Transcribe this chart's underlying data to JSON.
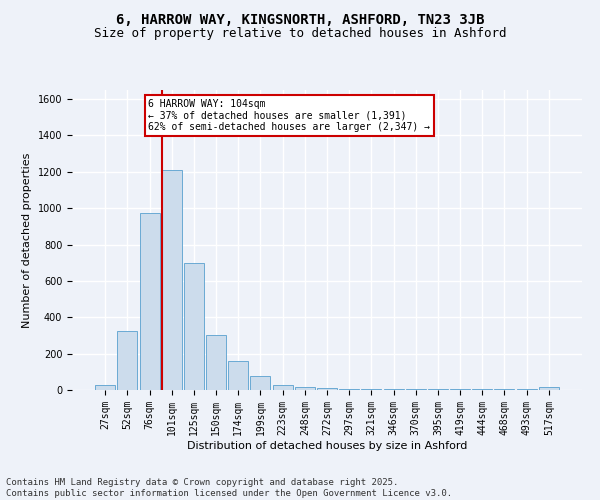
{
  "title1": "6, HARROW WAY, KINGSNORTH, ASHFORD, TN23 3JB",
  "title2": "Size of property relative to detached houses in Ashford",
  "xlabel": "Distribution of detached houses by size in Ashford",
  "ylabel": "Number of detached properties",
  "categories": [
    "27sqm",
    "52sqm",
    "76sqm",
    "101sqm",
    "125sqm",
    "150sqm",
    "174sqm",
    "199sqm",
    "223sqm",
    "248sqm",
    "272sqm",
    "297sqm",
    "321sqm",
    "346sqm",
    "370sqm",
    "395sqm",
    "419sqm",
    "444sqm",
    "468sqm",
    "493sqm",
    "517sqm"
  ],
  "values": [
    25,
    325,
    975,
    1210,
    700,
    305,
    160,
    75,
    28,
    18,
    12,
    5,
    5,
    5,
    5,
    8,
    5,
    5,
    5,
    5,
    14
  ],
  "bar_color": "#ccdcec",
  "bar_edge_color": "#6aaad4",
  "vline_color": "#cc0000",
  "annotation_text": "6 HARROW WAY: 104sqm\n← 37% of detached houses are smaller (1,391)\n62% of semi-detached houses are larger (2,347) →",
  "annotation_box_color": "#ffffff",
  "annotation_box_edge": "#cc0000",
  "footer": "Contains HM Land Registry data © Crown copyright and database right 2025.\nContains public sector information licensed under the Open Government Licence v3.0.",
  "ylim": [
    0,
    1650
  ],
  "background_color": "#eef2f9",
  "grid_color": "#ffffff",
  "title_fontsize": 10,
  "subtitle_fontsize": 9,
  "axis_fontsize": 8,
  "tick_fontsize": 7,
  "footer_fontsize": 6.5
}
